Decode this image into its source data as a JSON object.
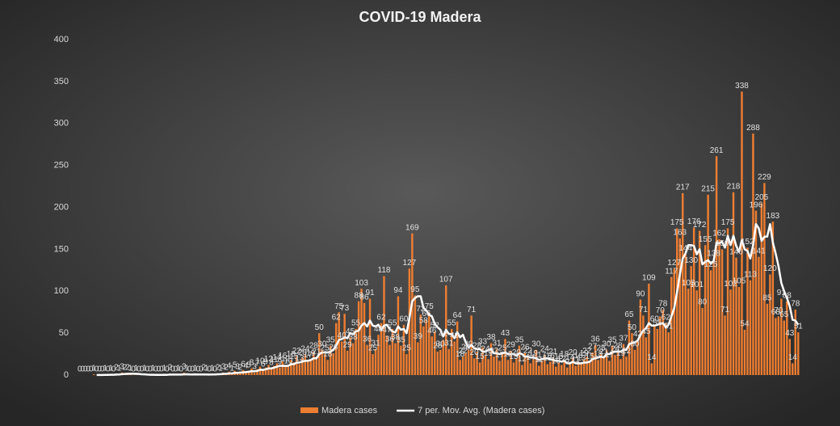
{
  "chart_data": {
    "type": "bar",
    "title": "COVID-19  Madera",
    "categories": [
      null,
      null,
      null,
      null,
      null,
      null,
      null,
      null,
      null,
      null,
      null,
      null,
      null,
      null,
      null,
      null,
      null,
      null,
      null,
      null,
      null,
      null,
      null,
      null,
      null,
      null,
      null,
      null,
      null,
      null,
      null,
      null,
      null,
      null,
      null,
      null,
      null,
      null,
      null,
      null,
      null,
      null,
      null,
      null,
      null,
      null,
      null,
      null,
      null,
      null,
      null,
      null,
      null,
      null,
      null,
      null,
      null,
      null,
      null,
      null,
      null,
      null,
      null,
      null,
      null,
      null,
      null,
      null,
      null,
      null,
      null,
      null,
      null,
      null,
      null,
      null,
      null,
      null,
      null,
      null,
      null,
      null,
      null,
      null,
      null,
      null,
      null,
      null,
      null,
      null,
      null,
      null,
      null,
      null,
      null,
      null,
      null,
      null,
      null,
      null,
      null,
      null,
      null,
      null,
      null,
      null,
      null,
      null,
      null,
      null,
      null,
      null,
      null,
      null,
      null,
      null,
      null,
      null,
      null,
      null,
      null,
      null,
      null,
      null,
      null,
      null,
      null,
      null,
      null,
      null,
      null,
      null,
      null,
      null,
      null,
      null,
      null,
      null,
      null,
      null,
      null,
      null,
      null,
      null,
      null,
      null,
      null,
      null,
      null,
      null,
      null,
      null,
      null,
      null,
      null,
      null,
      null,
      null,
      null,
      null,
      null,
      null,
      null,
      null,
      null,
      null,
      null,
      null,
      null,
      null,
      null,
      null,
      null,
      null,
      null,
      null,
      null,
      null,
      null,
      null,
      null,
      null,
      null,
      null,
      null,
      null,
      null,
      null,
      null,
      null,
      null,
      null,
      null,
      null,
      null,
      null,
      null,
      null,
      null,
      null,
      null,
      null,
      null,
      null,
      null,
      null,
      null,
      null,
      null,
      null,
      null,
      null,
      null,
      null,
      null,
      null,
      null,
      null,
      null,
      null,
      null,
      null,
      null,
      null,
      null,
      null,
      null,
      null,
      null,
      null,
      null,
      null,
      null,
      null,
      null,
      null,
      null,
      null,
      null,
      null,
      null,
      null,
      null,
      null,
      null,
      null,
      null,
      null,
      null,
      null,
      null,
      null,
      null,
      null,
      null,
      null
    ],
    "series": [
      {
        "name": "Madera cases",
        "color": "#ed7d31",
        "values": [
          0,
          0,
          0,
          0,
          0,
          1,
          0,
          0,
          0,
          1,
          0,
          1,
          0,
          2,
          1,
          3,
          2,
          2,
          1,
          0,
          1,
          0,
          0,
          1,
          0,
          0,
          1,
          0,
          0,
          0,
          1,
          0,
          2,
          0,
          0,
          1,
          0,
          3,
          1,
          0,
          0,
          1,
          0,
          0,
          2,
          1,
          0,
          1,
          0,
          2,
          1,
          3,
          2,
          4,
          1,
          5,
          3,
          2,
          6,
          4,
          5,
          8,
          3,
          7,
          10,
          6,
          9,
          12,
          8,
          11,
          14,
          9,
          16,
          12,
          10,
          18,
          15,
          22,
          13,
          20,
          24,
          17,
          19,
          28,
          21,
          50,
          30,
          25,
          18,
          35,
          26,
          62,
          75,
          40,
          73,
          29,
          45,
          38,
          55,
          88,
          103,
          86,
          36,
          91,
          25,
          31,
          48,
          62,
          118,
          47,
          36,
          55,
          38,
          94,
          35,
          60,
          25,
          127,
          169,
          95,
          39,
          72,
          58,
          66,
          75,
          46,
          52,
          28,
          30,
          42,
          107,
          31,
          55,
          40,
          64,
          18,
          22,
          26,
          30,
          71,
          20,
          28,
          15,
          33,
          24,
          19,
          38,
          22,
          31,
          17,
          25,
          43,
          18,
          29,
          15,
          20,
          35,
          12,
          26,
          22,
          14,
          19,
          30,
          11,
          17,
          24,
          13,
          16,
          21,
          10,
          15,
          12,
          18,
          9,
          14,
          20,
          11,
          16,
          13,
          19,
          22,
          15,
          27,
          36,
          18,
          25,
          21,
          30,
          17,
          35,
          24,
          28,
          19,
          37,
          22,
          65,
          50,
          30,
          42,
          90,
          71,
          45,
          109,
          14,
          60,
          55,
          70,
          78,
          62,
          51,
          117,
          127,
          175,
          163,
          217,
          144,
          103,
          130,
          176,
          101,
          172,
          80,
          155,
          215,
          125,
          138,
          261,
          162,
          150,
          71,
          175,
          102,
          218,
          140,
          105,
          338,
          54,
          152,
          113,
          288,
          196,
          141,
          205,
          229,
          85,
          120,
          183,
          68,
          70,
          91,
          65,
          88,
          43,
          14,
          78,
          51
        ]
      },
      {
        "name": "7 per. Mov. Avg. (Madera cases)",
        "type": "line",
        "color": "#ffffff",
        "values": [
          null,
          null,
          null,
          null,
          null,
          null,
          0.1,
          0.1,
          0.1,
          0.3,
          0.3,
          0.4,
          0.4,
          0.6,
          0.7,
          1.1,
          1.3,
          1.6,
          1.6,
          1.6,
          1.6,
          1.3,
          1.0,
          0.9,
          0.6,
          0.4,
          0.4,
          0.3,
          0.3,
          0.3,
          0.4,
          0.3,
          0.6,
          0.6,
          0.6,
          0.6,
          0.6,
          0.9,
          1.0,
          0.7,
          0.7,
          0.9,
          0.7,
          0.7,
          0.7,
          0.7,
          0.6,
          0.7,
          0.7,
          1.0,
          1.1,
          1.4,
          1.6,
          1.9,
          2.0,
          2.6,
          2.7,
          3.0,
          3.3,
          3.6,
          4.0,
          4.7,
          4.6,
          5.0,
          6.4,
          6.1,
          6.9,
          7.9,
          7.9,
          9.0,
          10,
          11,
          11,
          11,
          11,
          13,
          13,
          15,
          15,
          16,
          17,
          17,
          18,
          20,
          20,
          25,
          27,
          27,
          27,
          28,
          30,
          35,
          42,
          43,
          45,
          44,
          50,
          49,
          52,
          53,
          59,
          62,
          58,
          65,
          59,
          58,
          60,
          54,
          59,
          60,
          55,
          52,
          51,
          58,
          54,
          55,
          50,
          68,
          88,
          92,
          94,
          94,
          80,
          77,
          72,
          70,
          61,
          57,
          54,
          46,
          54,
          49,
          49,
          44,
          51,
          45,
          48,
          39,
          33,
          36,
          32,
          31,
          31,
          28,
          28,
          30,
          31,
          26,
          26,
          25,
          26,
          27,
          25,
          25,
          25,
          23,
          26,
          25,
          22,
          22,
          21,
          21,
          20,
          18,
          19,
          20,
          20,
          19,
          18,
          17,
          17,
          16,
          17,
          14,
          14,
          16,
          14,
          14,
          14,
          15,
          15,
          16,
          19,
          20,
          21,
          22,
          21,
          25,
          25,
          27,
          28,
          28,
          28,
          30,
          30,
          37,
          38,
          39,
          41,
          48,
          53,
          56,
          62,
          59,
          59,
          60,
          61,
          62,
          57,
          60,
          70,
          80,
          99,
          120,
          139,
          145,
          155,
          155,
          154,
          144,
          150,
          132,
          135,
          137,
          133,
          136,
          158,
          157,
          159,
          152,
          166,
          155,
          166,
          154,
          147,
          161,
          150,
          148,
          139,
          155,
          180,
          175,
          160,
          165,
          165,
          180,
          158,
          145,
          130,
          110,
          100,
          92,
          82,
          66,
          65,
          60
        ]
      }
    ],
    "ylim": [
      0,
      400
    ],
    "yticks": [
      0,
      50,
      100,
      150,
      200,
      250,
      300,
      350,
      400
    ],
    "grid": false,
    "data_labels": true,
    "legend": "bottom"
  }
}
